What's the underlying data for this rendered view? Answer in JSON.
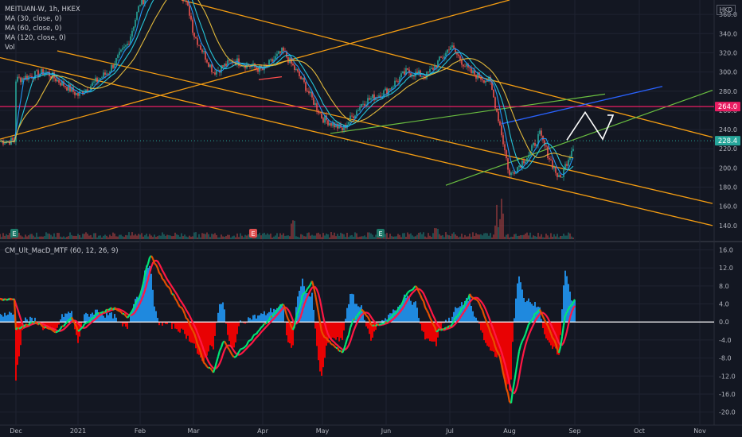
{
  "header": {
    "symbol_line": "MEITUAN-W, 1h, HKEX",
    "indicators": [
      "MA (30, close, 0)",
      "MA (60, close, 0)",
      "MA (120, close, 0)",
      "Vol"
    ],
    "currency": "HKD"
  },
  "colors": {
    "background": "#131722",
    "grid": "#1f2331",
    "ma30": "#2196f3",
    "ma60": "#26c6da",
    "ma120": "#e2b93b",
    "trend_orange": "#f39c12",
    "trend_green": "#6abf40",
    "trend_blue": "#2962ff",
    "resistance": "#e91e63",
    "last_price": "#26a69a",
    "macd_up": "#00e676",
    "macd_down": "#ff1744",
    "hist_up": "#2196f3",
    "hist_down": "#ff0000"
  },
  "chart_data": [
    {
      "type": "candlestick",
      "title": "MEITUAN-W, 1h, HKEX",
      "x_ticks": [
        "Dec",
        "2021",
        "Feb",
        "Mar",
        "Apr",
        "May",
        "Jun",
        "Jul",
        "Aug",
        "Sep",
        "Oct",
        "Nov"
      ],
      "y_ticks": [
        "360.0",
        "340.0",
        "320.0",
        "300.0",
        "280.0",
        "260.0",
        "240.0",
        "220.0",
        "200.0",
        "180.0",
        "160.0",
        "140.0"
      ],
      "ylim": [
        125,
        375
      ],
      "grid": true,
      "last_price": "228.4",
      "resistance_level": "264.0",
      "price_path": [
        [
          "Dec",
          292
        ],
        [
          "Dec-15",
          300
        ],
        [
          "2021",
          276
        ],
        [
          "Jan-15",
          300
        ],
        [
          "Jan-25",
          330
        ],
        [
          "Feb",
          372
        ],
        [
          "Feb-10",
          392
        ],
        [
          "Feb-18",
          396
        ],
        [
          "Feb-25",
          360
        ],
        [
          "Mar",
          340
        ],
        [
          "Mar-10",
          300
        ],
        [
          "Mar-20",
          312
        ],
        [
          "Apr",
          302
        ],
        [
          "Apr-10",
          322
        ],
        [
          "Apr-20",
          290
        ],
        [
          "May",
          252
        ],
        [
          "May-10",
          240
        ],
        [
          "May-20",
          268
        ],
        [
          "Jun",
          280
        ],
        [
          "Jun-10",
          300
        ],
        [
          "Jun-20",
          296
        ],
        [
          "Jun-30",
          320
        ],
        [
          "Jul",
          328
        ],
        [
          "Jul-10",
          300
        ],
        [
          "Jul-20",
          290
        ],
        [
          "Jul-25",
          245
        ],
        [
          "Aug",
          192
        ],
        [
          "Aug-10",
          215
        ],
        [
          "Aug-15",
          235
        ],
        [
          "Aug-20",
          210
        ],
        [
          "Aug-25",
          187
        ],
        [
          "Sep",
          228
        ]
      ],
      "volume_markers": [
        "E",
        "E",
        "E"
      ]
    },
    {
      "type": "line",
      "title": "CM_Ult_MacD_MTF (60, 12, 26, 9)",
      "y_ticks": [
        "16.0",
        "12.0",
        "8.0",
        "4.0",
        "0.0",
        "-4.0",
        "-8.0",
        "-12.0",
        "-16.0",
        "-20.0"
      ],
      "ylim": [
        -22,
        17.5
      ],
      "zero_line": true,
      "macd_path": [
        [
          "Dec",
          -1.5
        ],
        [
          "Dec-10",
          0
        ],
        [
          "Dec-20",
          -2.5
        ],
        [
          "Dec-28",
          1
        ],
        [
          "2021",
          -2
        ],
        [
          "Jan-10",
          2
        ],
        [
          "Jan-18",
          3
        ],
        [
          "Jan-25",
          1
        ],
        [
          "Feb",
          6
        ],
        [
          "Feb-05",
          15
        ],
        [
          "Feb-12",
          9
        ],
        [
          "Feb-18",
          5
        ],
        [
          "Feb-22",
          2
        ],
        [
          "Mar",
          -2
        ],
        [
          "Mar-05",
          -9
        ],
        [
          "Mar-10",
          -11
        ],
        [
          "Mar-15",
          -4
        ],
        [
          "Mar-20",
          -8
        ],
        [
          "Apr",
          -1
        ],
        [
          "Apr-10",
          4
        ],
        [
          "Apr-15",
          -2
        ],
        [
          "Apr-20",
          6
        ],
        [
          "Apr-25",
          9
        ],
        [
          "May",
          -3
        ],
        [
          "May-05",
          -5
        ],
        [
          "May-10",
          -7
        ],
        [
          "May-15",
          0
        ],
        [
          "May-20",
          3
        ],
        [
          "May-25",
          -1
        ],
        [
          "Jun",
          0
        ],
        [
          "Jun-05",
          2
        ],
        [
          "Jun-10",
          6
        ],
        [
          "Jun-15",
          8
        ],
        [
          "Jun-20",
          3
        ],
        [
          "Jun-25",
          -2
        ],
        [
          "Jul",
          -1
        ],
        [
          "Jul-05",
          2
        ],
        [
          "Jul-10",
          6
        ],
        [
          "Jul-15",
          4
        ],
        [
          "Jul-20",
          -2
        ],
        [
          "Jul-25",
          -8
        ],
        [
          "Jul-30",
          -18
        ],
        [
          "Aug",
          -20
        ],
        [
          "Aug-05",
          -6
        ],
        [
          "Aug-10",
          0
        ],
        [
          "Aug-15",
          3
        ],
        [
          "Aug-20",
          -2
        ],
        [
          "Aug-25",
          -7
        ],
        [
          "Aug-28",
          2
        ],
        [
          "Sep",
          5
        ]
      ]
    }
  ],
  "drawing_badges": {
    "resistance_label": "264.0",
    "last_label": "228.4"
  }
}
